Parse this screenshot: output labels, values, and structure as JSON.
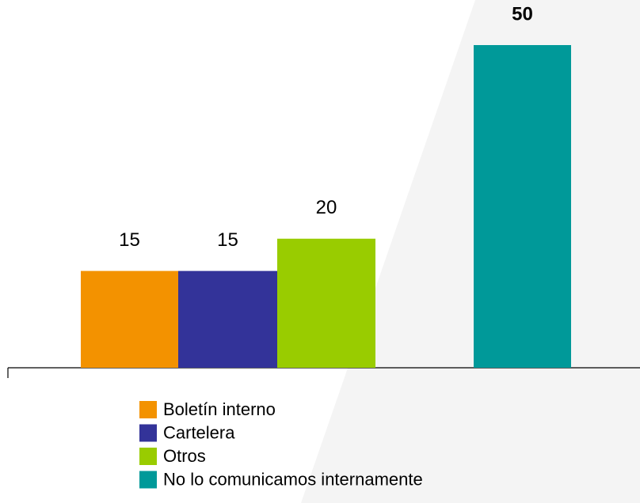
{
  "chart_data": {
    "type": "bar",
    "categories": [
      null
    ],
    "series": [
      {
        "name": "Boletín interno",
        "color": "#f39200",
        "values": [
          15
        ]
      },
      {
        "name": "Cartelera",
        "color": "#333399",
        "values": [
          15
        ]
      },
      {
        "name": "Otros",
        "color": "#99cc00",
        "values": [
          20
        ]
      },
      {
        "name": "No lo comunicamos internamente",
        "color": "#009999",
        "values": [
          50
        ]
      }
    ]
  }
}
